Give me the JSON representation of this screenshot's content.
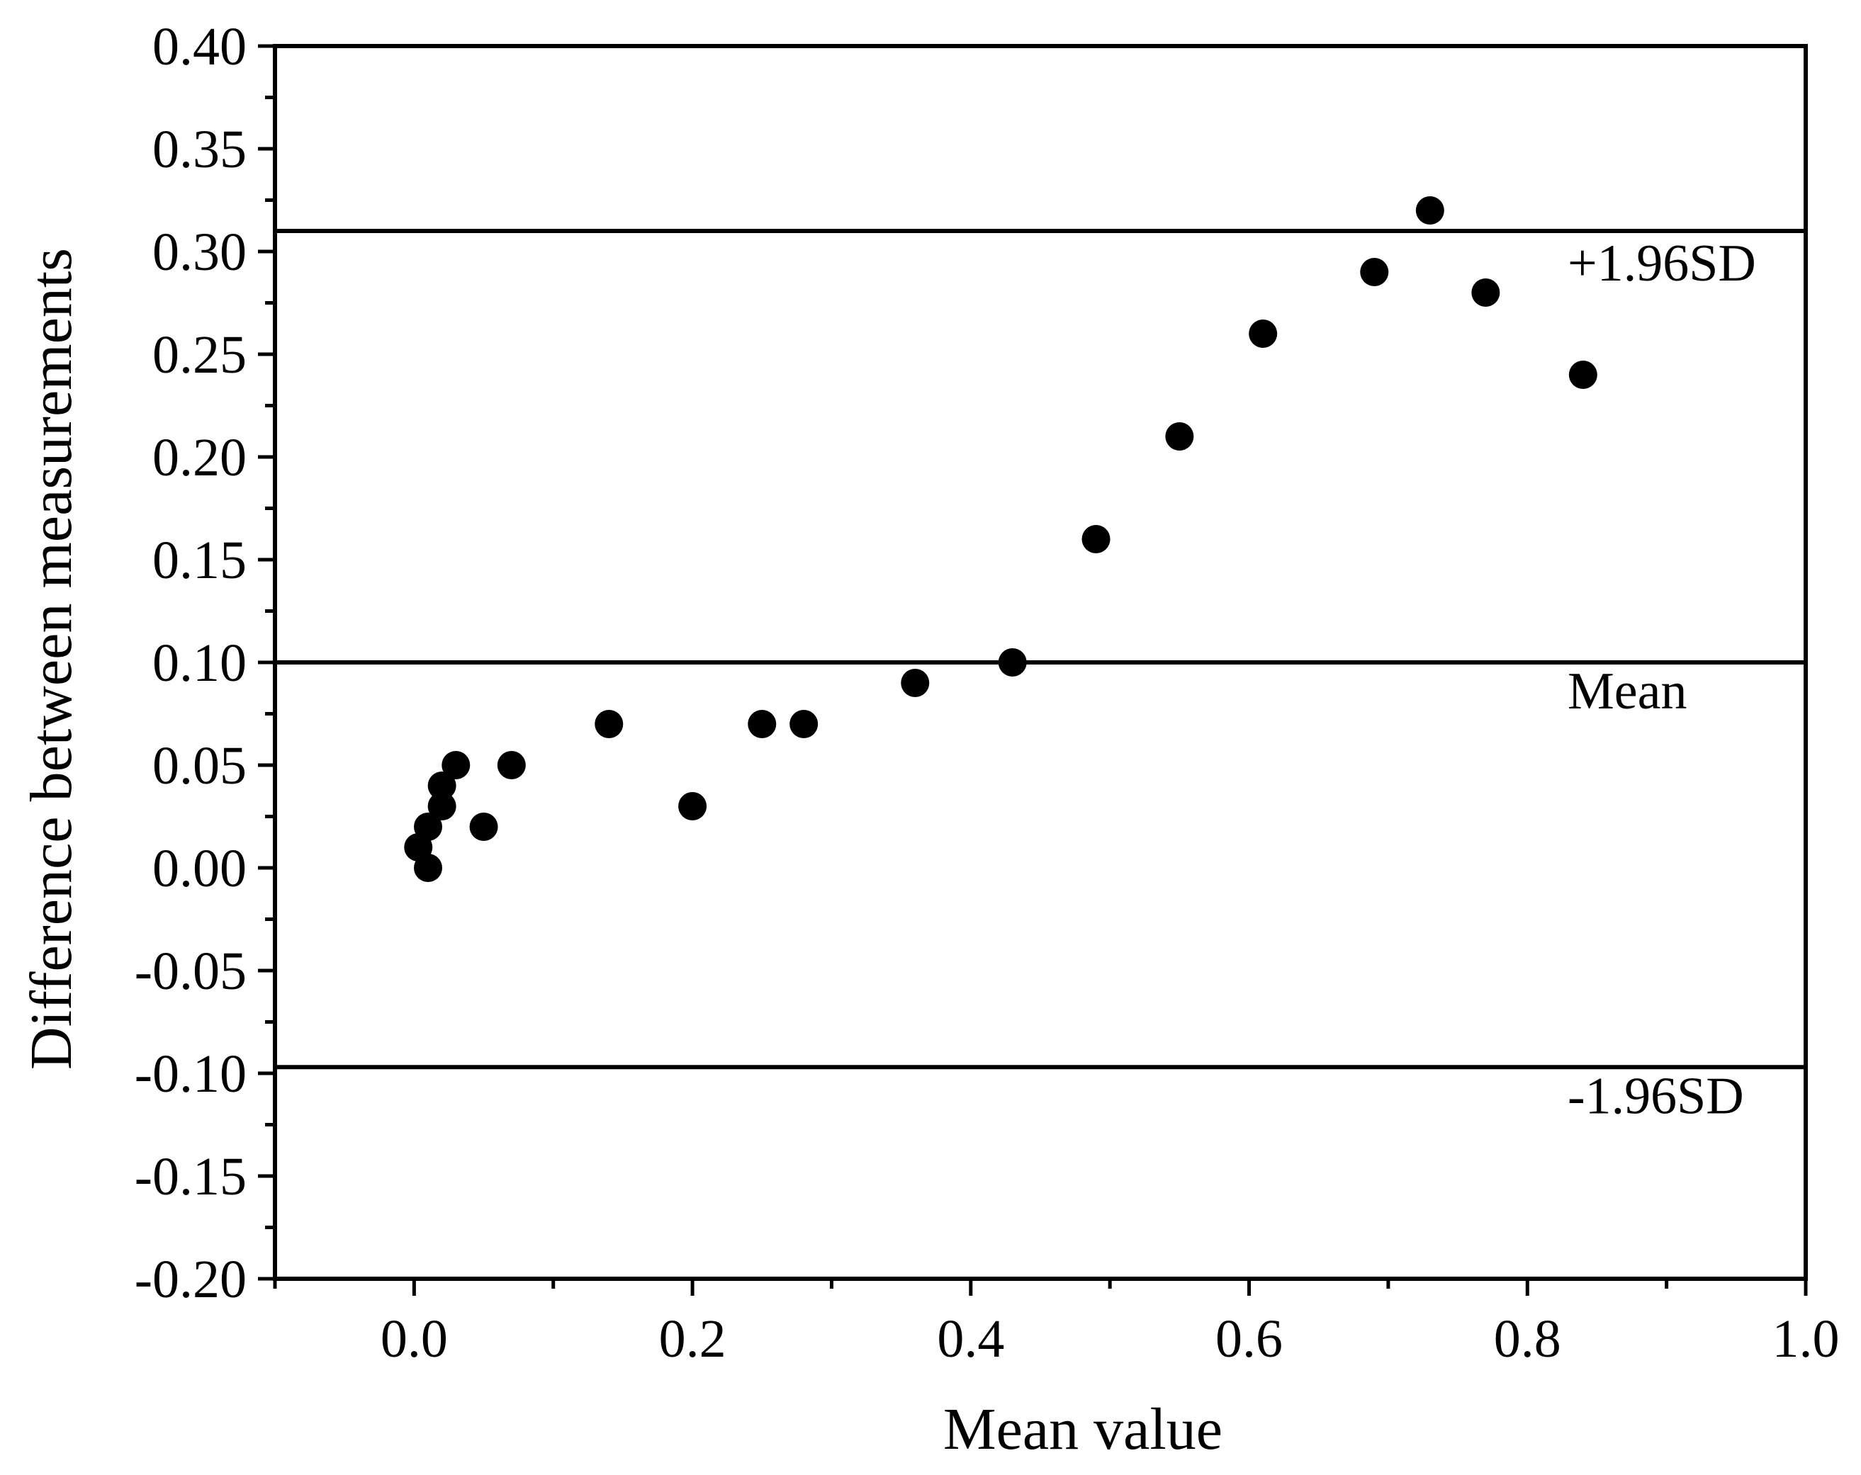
{
  "chart_data": {
    "type": "scatter",
    "title": "",
    "xlabel": "Mean value",
    "ylabel": "Difference between measurements",
    "xlim": [
      -0.1,
      1.0
    ],
    "ylim": [
      -0.2,
      0.4
    ],
    "x_ticks": [
      0.0,
      0.2,
      0.4,
      0.6,
      0.8,
      1.0
    ],
    "x_tick_labels": [
      "0.0",
      "0.2",
      "0.4",
      "0.6",
      "0.8",
      "1.0"
    ],
    "x_minor_ticks": [
      -0.1,
      0.1,
      0.3,
      0.5,
      0.7,
      0.9
    ],
    "y_ticks": [
      -0.2,
      -0.15,
      -0.1,
      -0.05,
      0.0,
      0.05,
      0.1,
      0.15,
      0.2,
      0.25,
      0.3,
      0.35,
      0.4
    ],
    "y_tick_labels": [
      "-0.20",
      "-0.15",
      "-0.10",
      "-0.05",
      "0.00",
      "0.05",
      "0.10",
      "0.15",
      "0.20",
      "0.25",
      "0.30",
      "0.35",
      "0.40"
    ],
    "y_minor_ticks": [
      -0.175,
      -0.125,
      -0.075,
      -0.025,
      0.025,
      0.075,
      0.125,
      0.175,
      0.225,
      0.275,
      0.325,
      0.375
    ],
    "grid": false,
    "reference_lines": [
      {
        "name": "upper-limit",
        "y": 0.31,
        "label": "+1.96SD"
      },
      {
        "name": "mean",
        "y": 0.1,
        "label": "Mean"
      },
      {
        "name": "lower-limit",
        "y": -0.097,
        "label": "-1.96SD"
      }
    ],
    "series": [
      {
        "name": "Measurements",
        "color": "#000000",
        "points": [
          {
            "x": 0.003,
            "y": 0.01
          },
          {
            "x": 0.01,
            "y": 0.0
          },
          {
            "x": 0.01,
            "y": 0.02
          },
          {
            "x": 0.02,
            "y": 0.03
          },
          {
            "x": 0.02,
            "y": 0.04
          },
          {
            "x": 0.03,
            "y": 0.05
          },
          {
            "x": 0.05,
            "y": 0.02
          },
          {
            "x": 0.07,
            "y": 0.05
          },
          {
            "x": 0.14,
            "y": 0.07
          },
          {
            "x": 0.2,
            "y": 0.03
          },
          {
            "x": 0.25,
            "y": 0.07
          },
          {
            "x": 0.28,
            "y": 0.07
          },
          {
            "x": 0.36,
            "y": 0.09
          },
          {
            "x": 0.43,
            "y": 0.1
          },
          {
            "x": 0.49,
            "y": 0.16
          },
          {
            "x": 0.55,
            "y": 0.21
          },
          {
            "x": 0.61,
            "y": 0.26
          },
          {
            "x": 0.69,
            "y": 0.29
          },
          {
            "x": 0.73,
            "y": 0.32
          },
          {
            "x": 0.77,
            "y": 0.28
          },
          {
            "x": 0.84,
            "y": 0.24
          }
        ]
      }
    ]
  }
}
